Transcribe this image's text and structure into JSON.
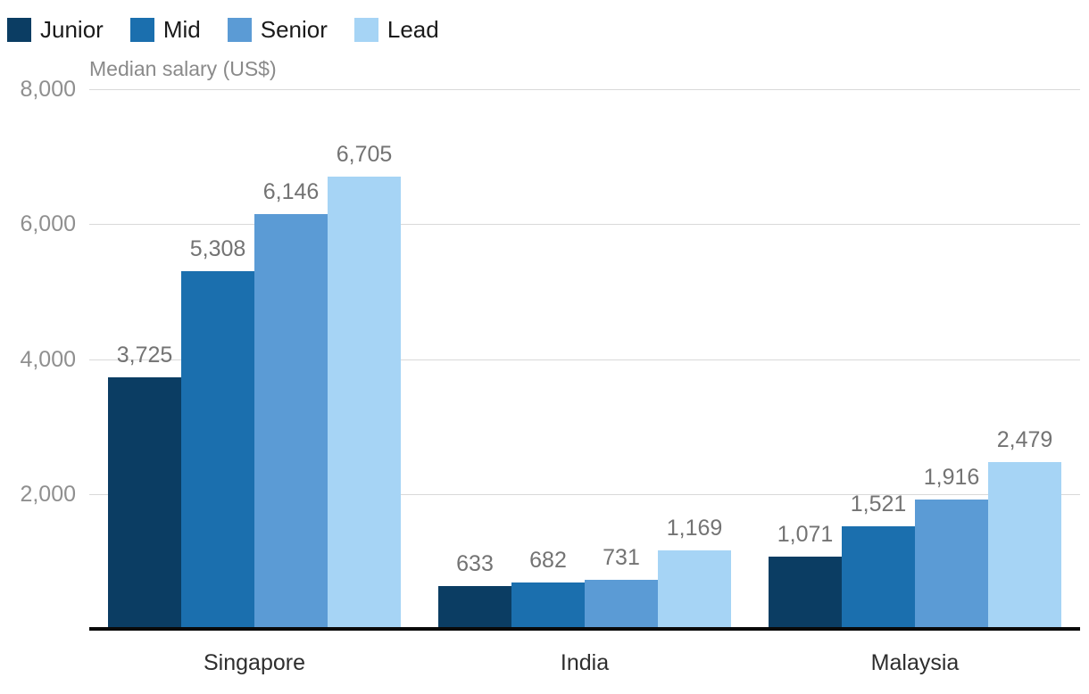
{
  "chart_data": {
    "type": "bar",
    "title": "",
    "ylabel": "Median salary (US$)",
    "xlabel": "",
    "categories": [
      "Singapore",
      "India",
      "Malaysia"
    ],
    "series": [
      {
        "name": "Junior",
        "color": "#0b3d63",
        "values": [
          3725,
          633,
          1071
        ]
      },
      {
        "name": "Mid",
        "color": "#1b6fae",
        "values": [
          5308,
          682,
          1521
        ]
      },
      {
        "name": "Senior",
        "color": "#5b9bd5",
        "values": [
          6146,
          731,
          1916
        ]
      },
      {
        "name": "Lead",
        "color": "#a6d4f5",
        "values": [
          6705,
          1169,
          2479
        ]
      }
    ],
    "ylim": [
      0,
      8000
    ],
    "yticks": [
      2000,
      4000,
      6000,
      8000
    ],
    "grid": true,
    "legend_position": "top-left",
    "colors": {
      "gridline": "#d9d9d9",
      "axis": "#0a0a0a",
      "tick_text": "#8f8f8f",
      "value_text": "#737373",
      "category_text": "#2e2e2e"
    }
  }
}
